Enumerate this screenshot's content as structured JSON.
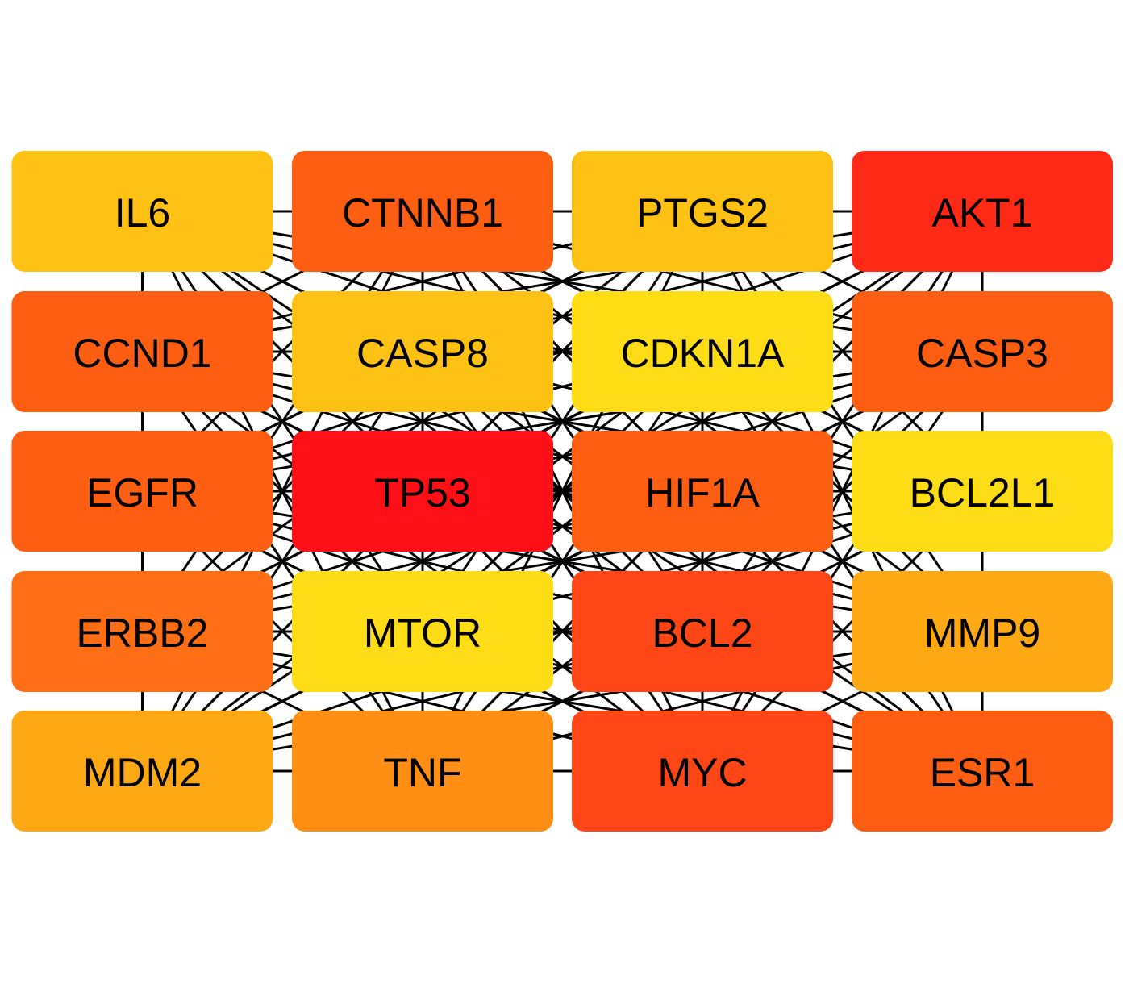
{
  "grid": {
    "columns": 4,
    "rows": 5
  },
  "nodes": [
    {
      "id": "IL6",
      "label": "IL6",
      "color": "#FEC114"
    },
    {
      "id": "CTNNB1",
      "label": "CTNNB1",
      "color": "#FE5E12"
    },
    {
      "id": "PTGS2",
      "label": "PTGS2",
      "color": "#FEC114"
    },
    {
      "id": "AKT1",
      "label": "AKT1",
      "color": "#FE2A16"
    },
    {
      "id": "CCND1",
      "label": "CCND1",
      "color": "#FE5E12"
    },
    {
      "id": "CASP8",
      "label": "CASP8",
      "color": "#FEC114"
    },
    {
      "id": "CDKN1A",
      "label": "CDKN1A",
      "color": "#FEDC16"
    },
    {
      "id": "CASP3",
      "label": "CASP3",
      "color": "#FE5E12"
    },
    {
      "id": "EGFR",
      "label": "EGFR",
      "color": "#FE5E12"
    },
    {
      "id": "TP53",
      "label": "TP53",
      "color": "#FE1016"
    },
    {
      "id": "HIF1A",
      "label": "HIF1A",
      "color": "#FE5E12"
    },
    {
      "id": "BCL2L1",
      "label": "BCL2L1",
      "color": "#FEDC16"
    },
    {
      "id": "ERBB2",
      "label": "ERBB2",
      "color": "#FE6E14"
    },
    {
      "id": "MTOR",
      "label": "MTOR",
      "color": "#FEDC16"
    },
    {
      "id": "BCL2",
      "label": "BCL2",
      "color": "#FE4616"
    },
    {
      "id": "MMP9",
      "label": "MMP9",
      "color": "#FEA814"
    },
    {
      "id": "MDM2",
      "label": "MDM2",
      "color": "#FEA814"
    },
    {
      "id": "TNF",
      "label": "TNF",
      "color": "#FE8E14"
    },
    {
      "id": "MYC",
      "label": "MYC",
      "color": "#FE4616"
    },
    {
      "id": "ESR1",
      "label": "ESR1",
      "color": "#FE5E12"
    }
  ],
  "edges": "all-pairs",
  "edge_color": "#000000"
}
